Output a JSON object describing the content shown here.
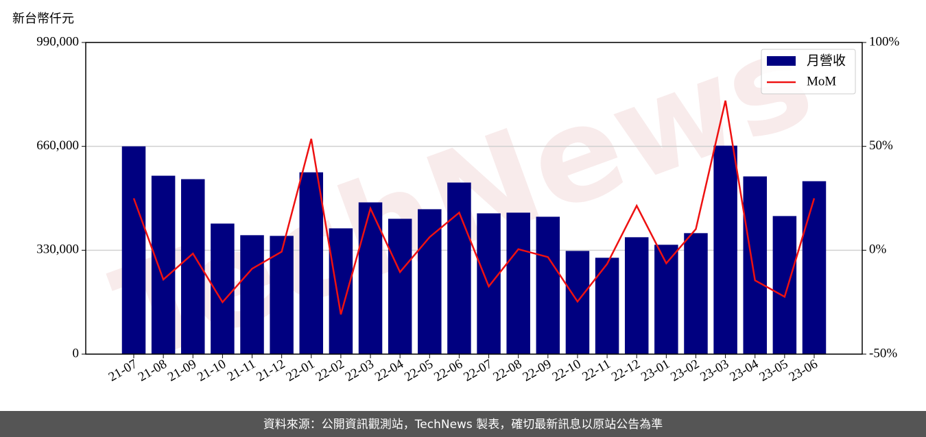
{
  "chart_data": {
    "type": "bar_line",
    "unit_label": "新台幣仟元",
    "watermark": "TechNews",
    "footer": "資料來源：公開資訊觀測站，TechNews 製表，確切最新訊息以原站公告為準",
    "categories": [
      "21-07",
      "21-08",
      "21-09",
      "21-10",
      "21-11",
      "21-12",
      "22-01",
      "22-02",
      "22-03",
      "22-04",
      "22-05",
      "22-06",
      "22-07",
      "22-08",
      "22-09",
      "22-10",
      "22-11",
      "22-12",
      "23-01",
      "23-02",
      "23-03",
      "23-04",
      "23-05",
      "23-06"
    ],
    "series": [
      {
        "name": "月營收",
        "type": "bar",
        "color": "#000080",
        "values": [
          660000,
          566700,
          555800,
          414700,
          377800,
          375600,
          577500,
          399500,
          482000,
          429900,
          460300,
          545000,
          447200,
          449400,
          436400,
          327800,
          306100,
          371300,
          347400,
          384300,
          662200,
          564500,
          438600,
          549300
        ]
      },
      {
        "name": "MoM",
        "type": "line",
        "axis": "y2",
        "color": "#ee1111",
        "values": [
          25.0,
          -14.1,
          -1.6,
          -25.0,
          -8.9,
          -0.7,
          53.6,
          -30.9,
          20.1,
          -10.5,
          6.3,
          18.1,
          -17.4,
          0.5,
          -3.3,
          -24.7,
          -6.6,
          21.4,
          -6.3,
          10.2,
          72.0,
          -14.5,
          -22.4,
          25.0
        ]
      }
    ],
    "ylim": [
      0,
      990000
    ],
    "yticks": [
      0,
      {
        "value": 330000,
        "label": "330,000"
      },
      {
        "value": 660000,
        "label": "660,000"
      },
      {
        "value": 990000,
        "label": "990,000"
      }
    ],
    "y2lim": [
      -50,
      100
    ],
    "y2ticks": [
      {
        "value": -50,
        "label": "-50%"
      },
      {
        "value": 0,
        "label": "0%"
      },
      {
        "value": 50,
        "label": "50%"
      },
      {
        "value": 100,
        "label": "100%"
      }
    ],
    "grid": true,
    "legend": "upper right"
  }
}
